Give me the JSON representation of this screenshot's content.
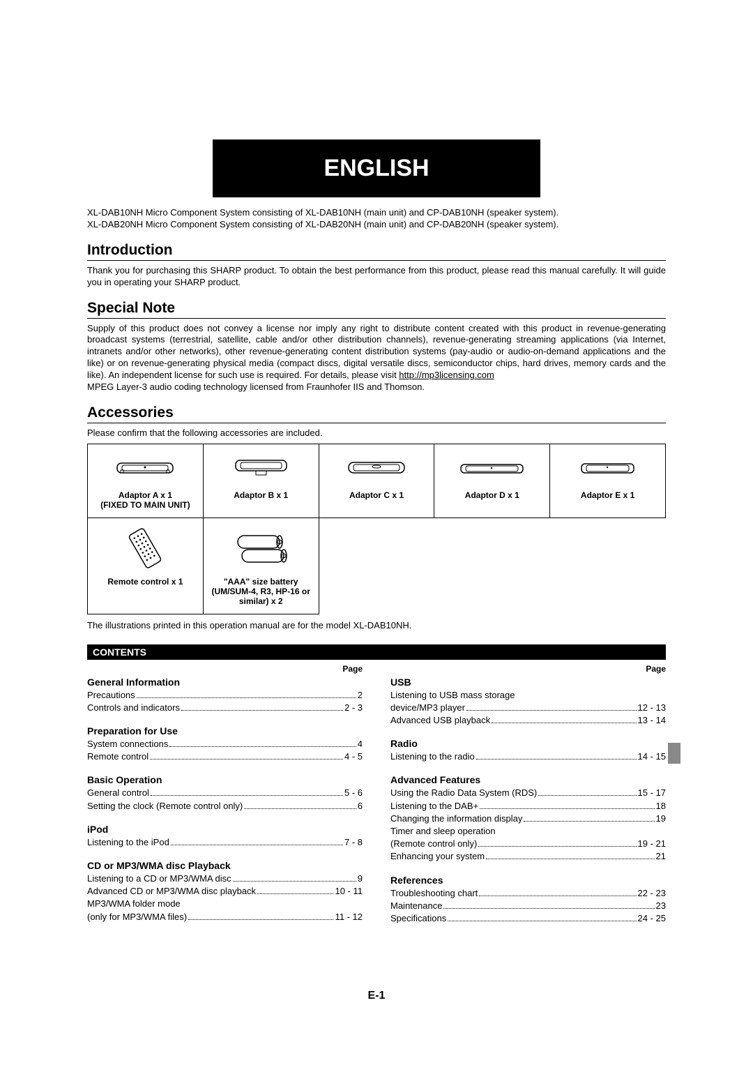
{
  "banner": "ENGLISH",
  "spec_lines": [
    "XL-DAB10NH Micro Component System consisting of XL-DAB10NH (main unit) and CP-DAB10NH (speaker system).",
    "XL-DAB20NH Micro Component System consisting of XL-DAB20NH (main unit) and CP-DAB20NH (speaker system)."
  ],
  "sections": {
    "introduction": {
      "title": "Introduction",
      "text": "Thank you for purchasing this SHARP product. To obtain the best performance from this product, please read this manual carefully. It will guide you in operating your SHARP product."
    },
    "special_note": {
      "title": "Special Note",
      "text_pre": "Supply of this product does not convey a license nor imply any right to distribute content created with this product in revenue-generating broadcast systems (terrestrial, satellite, cable and/or other distribution channels), revenue-generating streaming applications (via Internet, intranets and/or other networks), other revenue-generating content distribution systems (pay-audio or audio-on-demand applications and the like) or on revenue-generating physical media (compact discs, digital versatile discs, semiconductor chips, hard drives, memory cards and the like). An independent license for such use is required. For details, please visit ",
      "link": "http://mp3licensing.com",
      "text_post": "MPEG Layer-3 audio coding technology licensed from Fraunhofer IIS and Thomson."
    },
    "accessories": {
      "title": "Accessories",
      "intro": "Please confirm that the following accessories are included.",
      "items": [
        {
          "label": "Adaptor A x 1",
          "sub": "(FIXED TO MAIN UNIT)"
        },
        {
          "label": "Adaptor B x 1",
          "sub": ""
        },
        {
          "label": "Adaptor C x 1",
          "sub": ""
        },
        {
          "label": "Adaptor D x 1",
          "sub": ""
        },
        {
          "label": "Adaptor E x 1",
          "sub": ""
        },
        {
          "label": "Remote control x 1",
          "sub": ""
        },
        {
          "label": "\"AAA\" size battery",
          "sub": "(UM/SUM-4, R3, HP-16 or similar) x 2"
        }
      ],
      "footnote": "The illustrations printed in this operation manual are for the model XL-DAB10NH."
    }
  },
  "contents": {
    "title": "CONTENTS",
    "page_label": "Page",
    "left": [
      {
        "heading": "General Information"
      },
      {
        "label": "Precautions",
        "page": "2"
      },
      {
        "label": "Controls and indicators",
        "page": "2 - 3"
      },
      {
        "gap": true
      },
      {
        "heading": "Preparation for Use"
      },
      {
        "label": "System connections",
        "page": "4"
      },
      {
        "label": "Remote control",
        "page": "4 - 5"
      },
      {
        "gap": true
      },
      {
        "heading": "Basic Operation"
      },
      {
        "label": "General control",
        "page": "5 - 6"
      },
      {
        "label": "Setting the clock (Remote control only)",
        "page": "6"
      },
      {
        "gap": true
      },
      {
        "heading": "iPod"
      },
      {
        "label": "Listening to the iPod",
        "page": "7 - 8"
      },
      {
        "gap": true
      },
      {
        "heading": "CD or MP3/WMA disc Playback"
      },
      {
        "label": "Listening to a CD or MP3/WMA disc",
        "page": " 9"
      },
      {
        "label": "Advanced CD or MP3/WMA disc playback",
        "page": "10 - 11"
      },
      {
        "plain": "MP3/WMA folder mode"
      },
      {
        "label": "(only for MP3/WMA files)",
        "page": "11 - 12"
      }
    ],
    "right": [
      {
        "heading": "USB"
      },
      {
        "plain": "Listening to USB mass storage"
      },
      {
        "label": "device/MP3 player",
        "page": "12 - 13"
      },
      {
        "label": "Advanced USB playback",
        "page": "13 - 14"
      },
      {
        "gap": true
      },
      {
        "heading": "Radio"
      },
      {
        "label": "Listening to the radio",
        "page": "14 - 15"
      },
      {
        "gap": true
      },
      {
        "heading": "Advanced Features"
      },
      {
        "label": "Using the Radio Data System (RDS)",
        "page": "15 - 17"
      },
      {
        "label": "Listening to the DAB+",
        "page": " 18"
      },
      {
        "label": "Changing the information display",
        "page": " 19"
      },
      {
        "plain": "Timer and sleep operation"
      },
      {
        "label": "(Remote control only)",
        "page": "19 - 21"
      },
      {
        "label": "Enhancing your system",
        "page": " 21"
      },
      {
        "gap": true
      },
      {
        "heading": "References"
      },
      {
        "label": "Troubleshooting chart",
        "page": "22 - 23"
      },
      {
        "label": "Maintenance",
        "page": " 23"
      },
      {
        "label": "Specifications",
        "page": "24 - 25"
      }
    ]
  },
  "page_number": "E-1"
}
